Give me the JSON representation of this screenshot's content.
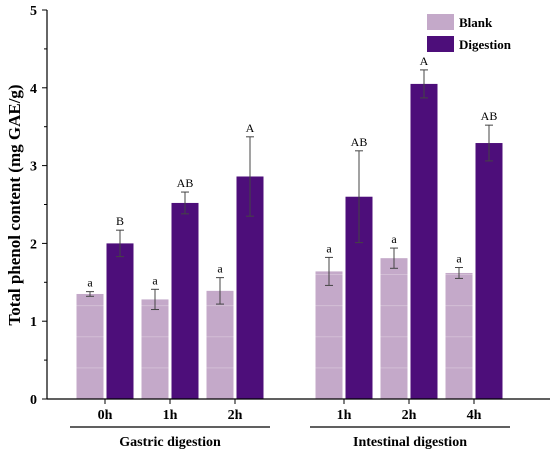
{
  "chart_data": {
    "type": "bar",
    "ylabel": "Total phenol content (mg GAE/g)",
    "xlabel": "",
    "ylim": [
      0,
      5
    ],
    "yticks": [
      0,
      1,
      2,
      3,
      4,
      5
    ],
    "legend_position": "top-right",
    "groups": [
      {
        "label": "Gastric digestion",
        "categories": [
          "0h",
          "1h",
          "2h"
        ]
      },
      {
        "label": "Intestinal digestion",
        "categories": [
          "1h",
          "2h",
          "4h"
        ]
      }
    ],
    "series": [
      {
        "name": "Blank",
        "color": "#c4a9c9",
        "values": [
          1.35,
          1.28,
          1.39,
          1.64,
          1.81,
          1.62
        ],
        "errors": [
          0.03,
          0.13,
          0.17,
          0.18,
          0.13,
          0.07
        ],
        "labels": [
          "a",
          "a",
          "a",
          "a",
          "a",
          "a"
        ]
      },
      {
        "name": "Digestion",
        "color": "#4d0e7a",
        "values": [
          2.0,
          2.52,
          2.86,
          2.6,
          4.05,
          3.29
        ],
        "errors": [
          0.17,
          0.14,
          0.51,
          0.59,
          0.18,
          0.23
        ],
        "labels": [
          "B",
          "AB",
          "A",
          "AB",
          "A",
          "AB"
        ]
      }
    ]
  }
}
